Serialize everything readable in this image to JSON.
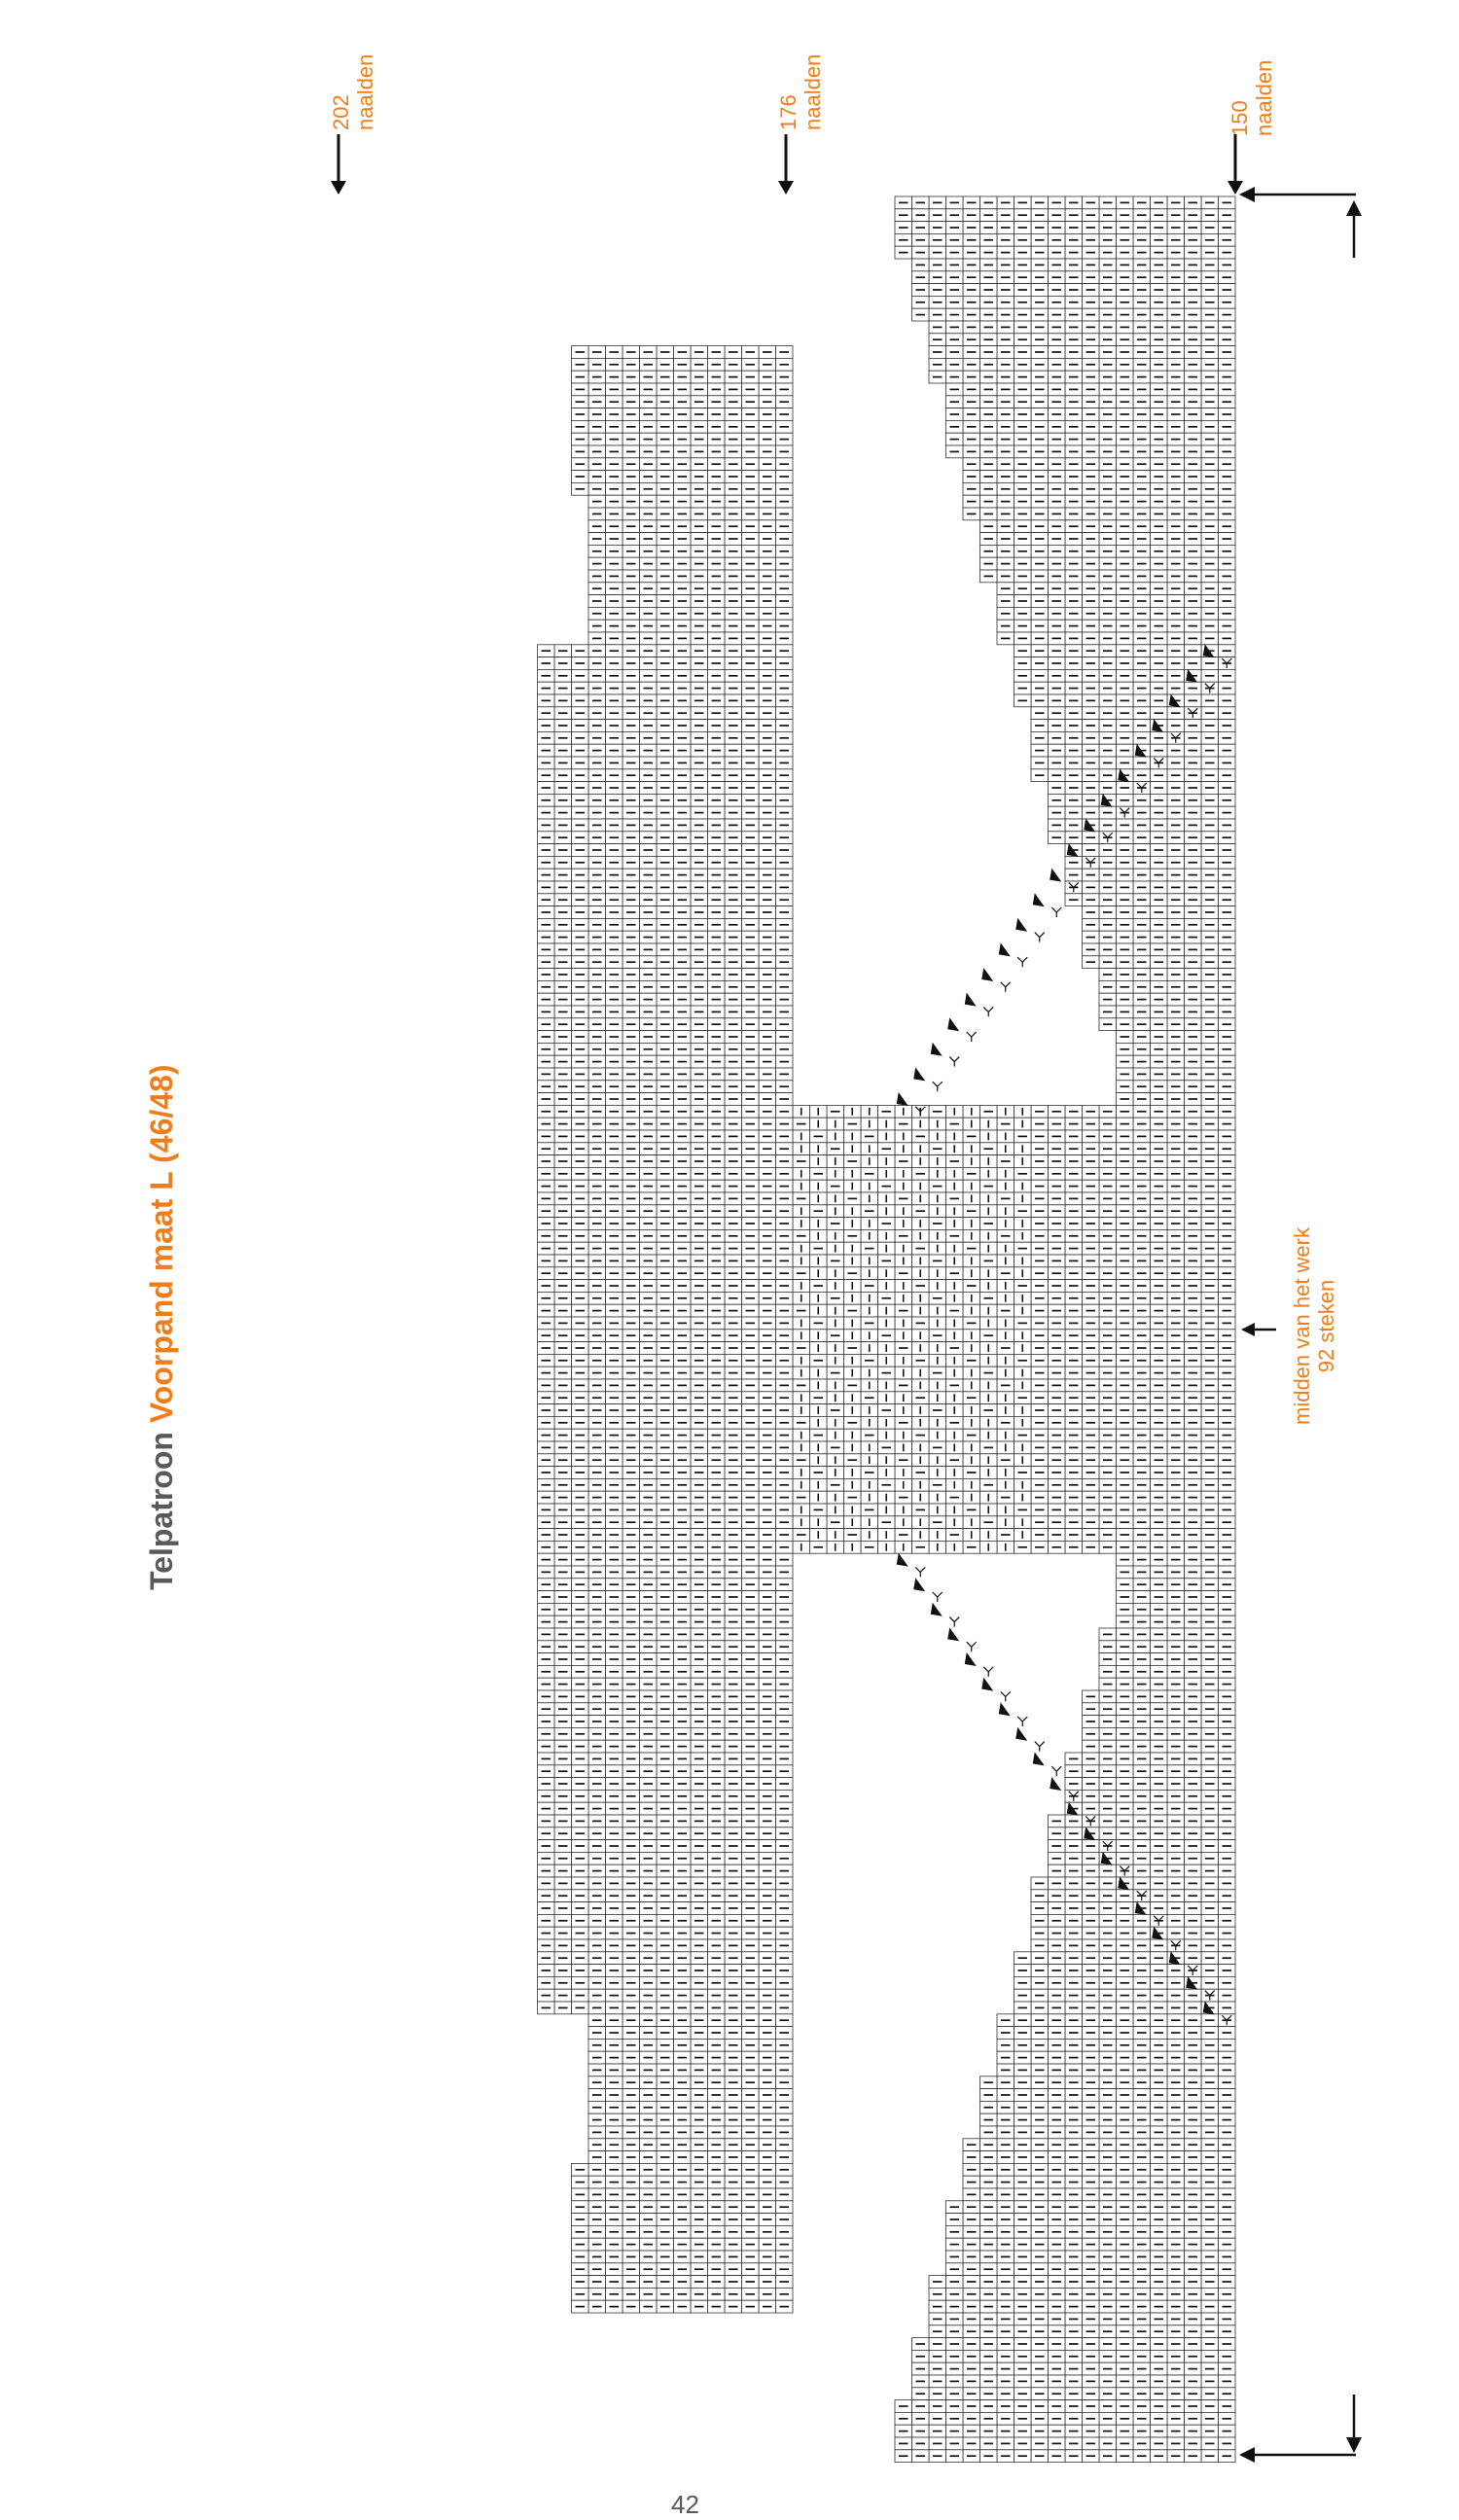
{
  "title": {
    "prefix": "Telpatroon",
    "main": "Voorpand maat L (46/48)"
  },
  "column_markers": [
    {
      "number": "202",
      "unit": "naalden"
    },
    {
      "number": "176",
      "unit": "naalden"
    },
    {
      "number": "150",
      "unit": "naalden"
    }
  ],
  "center_marker": {
    "line1": "midden van het werk",
    "line2": "92 steken"
  },
  "page_number": "42",
  "colors": {
    "accent": "#f07d19",
    "grey": "#58595b",
    "ink": "#111111"
  },
  "symbols": [
    "dash-stitch",
    "bar-stitch",
    "triangle-decrease",
    "y-increase",
    "arrow-icon"
  ]
}
